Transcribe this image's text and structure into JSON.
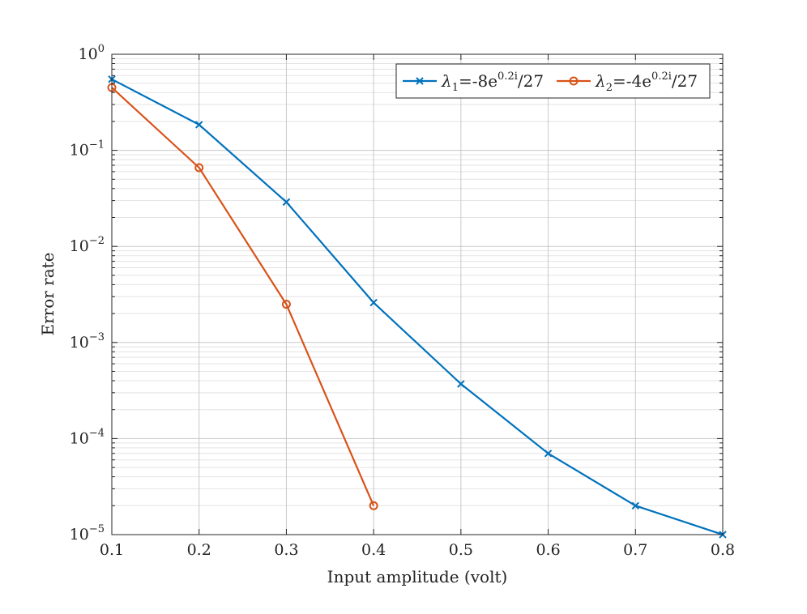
{
  "chart_data": {
    "type": "line",
    "xlabel": "Input amplitude (volt)",
    "ylabel": "Error rate",
    "y_scale": "log",
    "xlim": [
      0.1,
      0.8
    ],
    "ylim": [
      1e-05,
      1
    ],
    "x_ticks": [
      "0.1",
      "0.2",
      "0.3",
      "0.4",
      "0.5",
      "0.6",
      "0.7",
      "0.8"
    ],
    "y_ticks": [
      {
        "base": "10",
        "exp": "0"
      },
      {
        "base": "10",
        "exp": "−1"
      },
      {
        "base": "10",
        "exp": "−2"
      },
      {
        "base": "10",
        "exp": "−3"
      },
      {
        "base": "10",
        "exp": "−4"
      },
      {
        "base": "10",
        "exp": "−5"
      }
    ],
    "grid": true,
    "legend_position": "top-right",
    "series": [
      {
        "name": "λ1=-8e0.2i/27",
        "legend": {
          "sym": "λ",
          "sub": "1",
          "pre": "=-8e",
          "sup": "0.2i",
          "post": "/27"
        },
        "color": "#0072BD",
        "marker": "x",
        "x": [
          0.1,
          0.2,
          0.3,
          0.4,
          0.5,
          0.6,
          0.7,
          0.8
        ],
        "y": [
          0.55,
          0.185,
          0.029,
          0.0026,
          0.00037,
          7e-05,
          2e-05,
          1e-05
        ]
      },
      {
        "name": "λ2=-4e0.2i/27",
        "legend": {
          "sym": "λ",
          "sub": "2",
          "pre": "=-4e",
          "sup": "0.2i",
          "post": "/27"
        },
        "color": "#D95319",
        "marker": "o",
        "x": [
          0.1,
          0.2,
          0.3,
          0.4
        ],
        "y": [
          0.45,
          0.066,
          0.0025,
          2e-05
        ]
      }
    ]
  }
}
